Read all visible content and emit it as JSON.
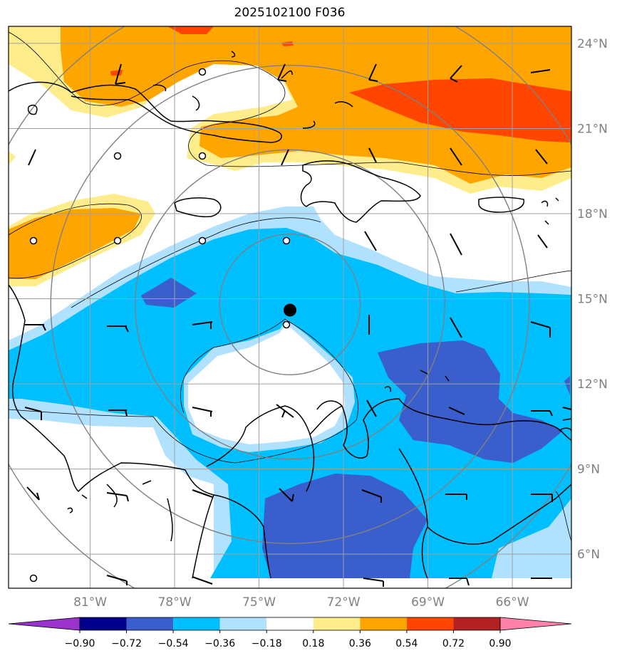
{
  "title": "2025102100 F036",
  "map": {
    "lat_labels": [
      "24°N",
      "21°N",
      "18°N",
      "15°N",
      "12°N",
      "9°N",
      "6°N"
    ],
    "lon_labels": [
      "81°W",
      "78°W",
      "75°W",
      "72°W",
      "69°W",
      "66°W"
    ],
    "lat_values": [
      24,
      21,
      18,
      15,
      12,
      9,
      6
    ],
    "lon_values": [
      -81,
      -78,
      -75,
      -72,
      -69,
      -66
    ],
    "extent": {
      "lon_min": -83.9,
      "lon_max": -63.9,
      "lat_min": 4.8,
      "lat_max": 24.6
    },
    "storm_center": {
      "lon": -73.9,
      "lat": 14.6
    },
    "range_ring_center": {
      "lon": -73.9,
      "lat": 14.8
    }
  },
  "colorbar": {
    "ticks": [
      "−0.90",
      "−0.72",
      "−0.54",
      "−0.36",
      "−0.18",
      "0.18",
      "0.36",
      "0.54",
      "0.72",
      "0.90"
    ],
    "colors": [
      "#9a32cd",
      "#00008b",
      "#3a5fcd",
      "#00bfff",
      "#b0e2ff",
      "#ffffff",
      "#ffec8b",
      "#ffa500",
      "#ff4500",
      "#b22222",
      "#ff82ab"
    ],
    "shaded_colors": {
      "light_yellow": "#ffec8b",
      "orange": "#ffa500",
      "red_orange": "#ff4500",
      "deep_sky_blue": "#00bfff",
      "light_blue": "#b0e2ff",
      "royal_blue": "#3a5fcd"
    }
  }
}
